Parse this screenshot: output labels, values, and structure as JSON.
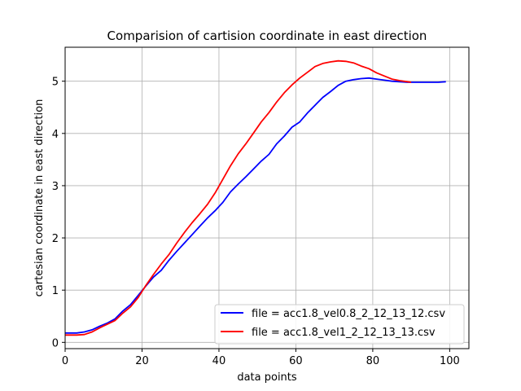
{
  "chart_data": {
    "type": "line",
    "title": "Comparision of cartision coordinate in east direction",
    "xlabel": "data points",
    "ylabel": "cartesian coordinate in east direction",
    "xlim": [
      0,
      105
    ],
    "ylim": [
      -0.12,
      5.65
    ],
    "xticks": [
      0,
      20,
      40,
      60,
      80,
      100
    ],
    "yticks": [
      0,
      1,
      2,
      3,
      4,
      5
    ],
    "grid": true,
    "legend_position": "lower-right",
    "series": [
      {
        "name": "file = acc1.8_vel0.8_2_12_13_12.csv",
        "color": "#0000ff",
        "x": [
          0,
          3,
          5,
          7,
          9,
          11,
          13,
          15,
          17,
          19,
          21,
          23,
          25,
          27,
          29,
          31,
          33,
          35,
          37,
          39,
          41,
          43,
          45,
          47,
          49,
          51,
          53,
          55,
          57,
          59,
          61,
          63,
          65,
          67,
          69,
          71,
          73,
          75,
          77,
          79,
          81,
          83,
          85,
          87,
          89,
          91,
          93,
          95,
          97,
          99
        ],
        "y": [
          0.18,
          0.18,
          0.2,
          0.24,
          0.31,
          0.37,
          0.45,
          0.6,
          0.72,
          0.9,
          1.08,
          1.25,
          1.38,
          1.57,
          1.74,
          1.9,
          2.06,
          2.22,
          2.38,
          2.52,
          2.68,
          2.88,
          3.03,
          3.17,
          3.32,
          3.47,
          3.6,
          3.8,
          3.95,
          4.12,
          4.22,
          4.39,
          4.54,
          4.69,
          4.8,
          4.92,
          5.0,
          5.03,
          5.05,
          5.06,
          5.04,
          5.02,
          5.0,
          4.99,
          4.98,
          4.98,
          4.98,
          4.98,
          4.98,
          4.99
        ]
      },
      {
        "name": "file = acc1.8_vel1_2_12_13_13.csv",
        "color": "#ff0000",
        "x": [
          0,
          3,
          5,
          7,
          9,
          11,
          13,
          15,
          17,
          19,
          21,
          23,
          25,
          27,
          29,
          31,
          33,
          35,
          37,
          39,
          41,
          43,
          45,
          47,
          49,
          51,
          53,
          55,
          57,
          59,
          61,
          63,
          65,
          67,
          69,
          71,
          73,
          75,
          77,
          79,
          81,
          83,
          85,
          87,
          89,
          90
        ],
        "y": [
          0.14,
          0.14,
          0.15,
          0.2,
          0.28,
          0.35,
          0.42,
          0.56,
          0.68,
          0.86,
          1.09,
          1.3,
          1.5,
          1.68,
          1.9,
          2.1,
          2.29,
          2.46,
          2.64,
          2.86,
          3.12,
          3.38,
          3.61,
          3.8,
          4.01,
          4.22,
          4.4,
          4.6,
          4.78,
          4.93,
          5.06,
          5.17,
          5.28,
          5.34,
          5.37,
          5.39,
          5.38,
          5.35,
          5.29,
          5.24,
          5.16,
          5.1,
          5.04,
          5.01,
          4.99,
          4.98
        ]
      }
    ]
  }
}
